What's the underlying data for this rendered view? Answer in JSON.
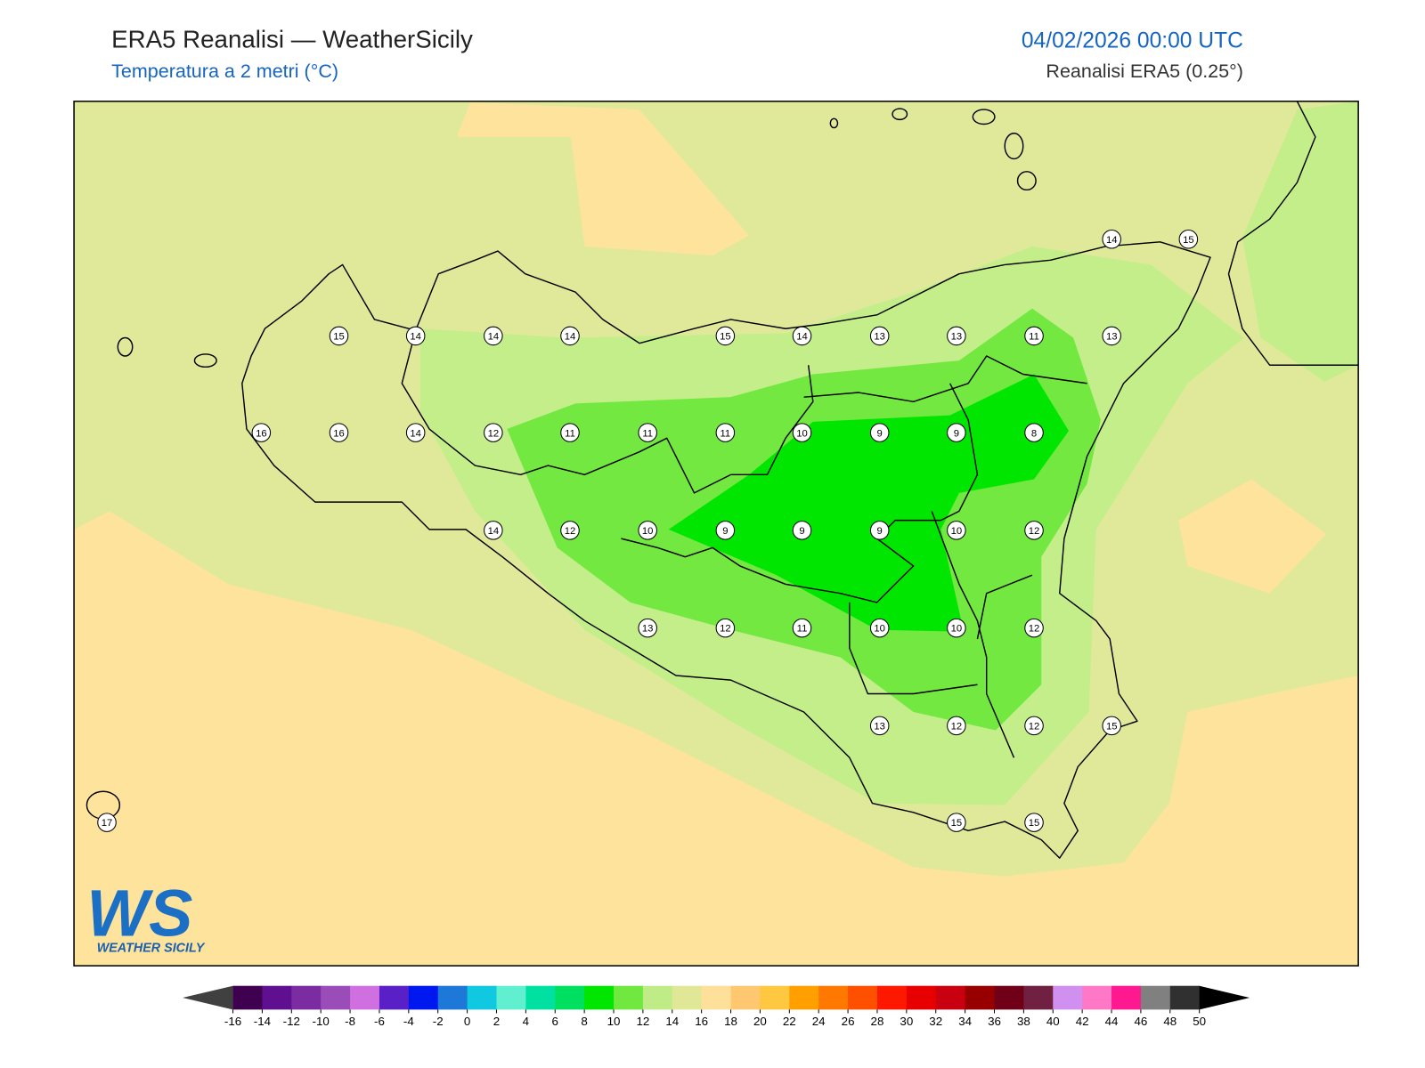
{
  "header": {
    "title": "ERA5 Reanalisi — WeatherSicily",
    "subtitle": "Temperatura a 2 metri (°C)",
    "datetime": "04/02/2026 00:00 UTC",
    "source": "Reanalisi ERA5 (0.25°)"
  },
  "stations": [
    14,
    15,
    15,
    14,
    14,
    14,
    15,
    14,
    13,
    13,
    11,
    13,
    16,
    16,
    14,
    12,
    11,
    11,
    11,
    10,
    9,
    9,
    8,
    14,
    12,
    10,
    9,
    9,
    9,
    10,
    12,
    13,
    12,
    11,
    10,
    10,
    12,
    13,
    12,
    12,
    15,
    17,
    15,
    15
  ],
  "colorbar": {
    "ticks": [
      -16,
      -14,
      -12,
      -10,
      -8,
      -6,
      -4,
      -2,
      0,
      2,
      4,
      6,
      8,
      10,
      12,
      14,
      16,
      18,
      20,
      22,
      24,
      26,
      28,
      30,
      32,
      34,
      36,
      38,
      40,
      42,
      44,
      46,
      48,
      50
    ],
    "colors": [
      "#400050",
      "#5e1090",
      "#7a2ca0",
      "#9a4cb8",
      "#d070e0",
      "#5a20c8",
      "#0018f0",
      "#1e78d8",
      "#10c8e0",
      "#60f0d0",
      "#00e0a0",
      "#00e060",
      "#00e600",
      "#70e840",
      "#c0ec88",
      "#e0e898",
      "#ffe09a",
      "#ffc870",
      "#ffc840",
      "#ffa000",
      "#ff7800",
      "#ff5000",
      "#ff1800",
      "#e80000",
      "#c80010",
      "#980000",
      "#700018",
      "#702040",
      "#d090f0",
      "#ff78c8",
      "#ff1890",
      "#808080",
      "#303030"
    ],
    "under_color": "#404040",
    "over_color": "#000000"
  },
  "logo": {
    "mark": "WS",
    "name": "WEATHER SICILY"
  }
}
